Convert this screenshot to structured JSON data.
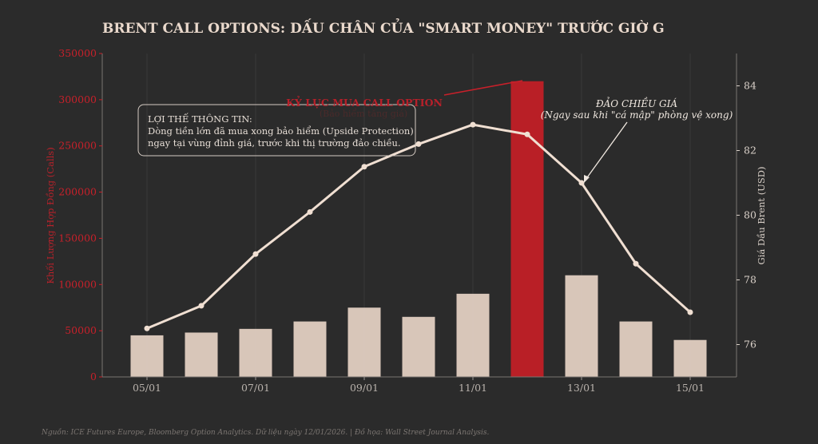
{
  "chart_data": {
    "type": "bar+line",
    "title": "BRENT CALL OPTIONS: DẤU CHÂN CỦA \"SMART MONEY\" TRƯỚC GIỜ G",
    "categories": [
      "05/01",
      "06/01",
      "07/01",
      "08/01",
      "09/01",
      "10/01",
      "11/01",
      "12/01",
      "13/01",
      "14/01",
      "15/01"
    ],
    "x_tick_labels": [
      "05/01",
      "07/01",
      "09/01",
      "11/01",
      "13/01",
      "15/01"
    ],
    "bars": {
      "name": "Khối Lượng Hợp Đồng (Calls)",
      "values": [
        45000,
        48000,
        52000,
        60000,
        75000,
        65000,
        90000,
        320000,
        110000,
        60000,
        40000
      ],
      "highlight_index": 7,
      "color": "#e2cfc1",
      "highlight_color": "#b91f26"
    },
    "line": {
      "name": "Giá Dầu Brent (USD)",
      "values": [
        76.5,
        77.2,
        78.8,
        80.1,
        81.5,
        82.2,
        82.8,
        82.5,
        81.0,
        78.5,
        77.0
      ],
      "color": "#f0dfd2"
    },
    "ylabel_left": "Khối Lượng Hợp Đồng (Calls)",
    "ylim_left": [
      0,
      350000
    ],
    "yticks_left": [
      0,
      50000,
      100000,
      150000,
      200000,
      250000,
      300000,
      350000
    ],
    "ylabel_right": "Giá Dầu Brent (USD)",
    "ylim_right": [
      75,
      85
    ],
    "yticks_right": [
      76,
      78,
      80,
      82,
      84
    ],
    "annotations": {
      "record": {
        "title": "KỶ LỤC MUA CALL OPTION",
        "subtitle": "(Bảo hiểm tăng giá)"
      },
      "reversal": {
        "title": "ĐẢO CHIỀU GIÁ",
        "subtitle": "(Ngay sau khi \"cá mập\" phòng vệ xong)"
      },
      "info_box": {
        "line1": "LỢI THẾ THÔNG TIN:",
        "line2": "Dòng tiền lớn đã mua xong bảo hiểm (Upside Protection)",
        "line3": "ngay tại vùng đỉnh giá, trước khi thị trường đảo chiều."
      }
    },
    "source": "Nguồn: ICE Futures Europe, Bloomberg Option Analytics. Dữ liệu ngày 12/01/2026. | Đồ họa: Wall Street Journal Analysis."
  },
  "colors": {
    "background": "#2b2b2b",
    "left_axis": "#c8202a",
    "right_axis": "#d9d0c8",
    "title": "#ead9cc"
  }
}
